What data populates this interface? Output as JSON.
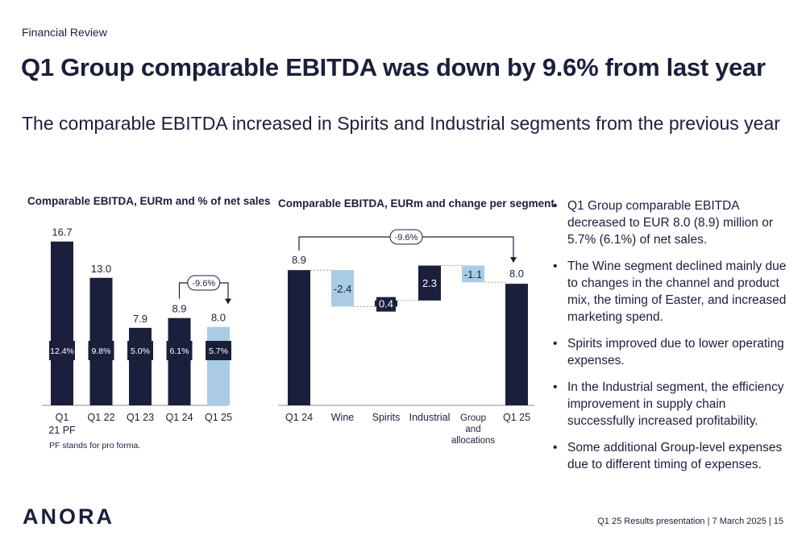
{
  "header": {
    "section": "Financial Review",
    "title": "Q1 Group comparable EBITDA was down by 9.6% from last year",
    "subtitle": "The comparable EBITDA increased in Spirits and Industrial segments from the previous year"
  },
  "chart_data": [
    {
      "type": "bar",
      "title": "Comparable EBITDA, EURm and % of net sales",
      "categories": [
        [
          "Q1",
          "21 PF"
        ],
        [
          "Q1 22"
        ],
        [
          "Q1 23"
        ],
        [
          "Q1 24"
        ],
        [
          "Q1 25"
        ]
      ],
      "values": [
        16.7,
        13.0,
        7.9,
        8.9,
        8.0
      ],
      "value_labels": [
        "16.7",
        "13.0",
        "7.9",
        "8.9",
        "8.0"
      ],
      "margin_labels": [
        "12.4%",
        "9.8%",
        "5.0%",
        "6.1%",
        "5.7%"
      ],
      "highlight_index": 4,
      "change_annotation": "-9.6%",
      "ylim": [
        0,
        17.5
      ],
      "colors": {
        "dark": "#1b1f3b",
        "light": "#a9cce3"
      },
      "footnote": "PF stands for pro forma."
    },
    {
      "type": "waterfall",
      "title": "Comparable EBITDA, EURm and change per segment",
      "categories": [
        [
          "Q1 24"
        ],
        [
          "Wine"
        ],
        [
          "Spirits"
        ],
        [
          "Industrial"
        ],
        [
          "Group",
          "and",
          "allocations"
        ],
        [
          "Q1 25"
        ]
      ],
      "kinds": [
        "total",
        "delta",
        "delta",
        "delta",
        "delta",
        "total"
      ],
      "values": [
        8.9,
        -2.4,
        0.4,
        2.3,
        -1.1,
        8.0
      ],
      "value_labels": [
        "8.9",
        "-2.4",
        "0.4",
        "2.3",
        "-1.1",
        "8.0"
      ],
      "change_annotation": "-9.6%",
      "ylim": [
        0,
        10.5
      ],
      "colors": {
        "dark": "#1b1f3b",
        "light": "#a9cce3"
      }
    }
  ],
  "bullets": [
    "Q1 Group comparable EBITDA decreased to EUR 8.0 (8.9) million or 5.7% (6.1%) of net sales.",
    "The Wine segment declined mainly due to changes in the channel and product mix, the timing of Easter, and increased marketing spend.",
    "Spirits improved due to lower operating expenses.",
    "In the Industrial segment, the efficiency improvement in supply chain successfully increased profitability.",
    "Some additional Group-level expenses due to different timing of expenses."
  ],
  "logo": {
    "text": "ANORA"
  },
  "footer": {
    "text": "Q1 25 Results presentation  |  7 March 2025  |  15"
  }
}
